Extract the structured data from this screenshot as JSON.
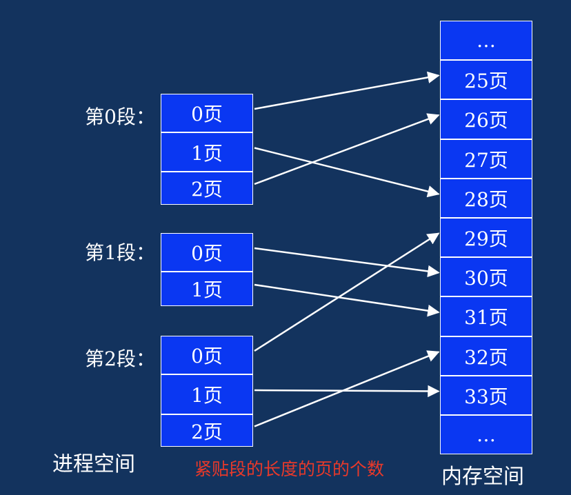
{
  "segments": [
    {
      "label": "第0段：",
      "pages": [
        "0页",
        "1页",
        "2页"
      ]
    },
    {
      "label": "第1段：",
      "pages": [
        "0页",
        "1页"
      ]
    },
    {
      "label": "第2段：",
      "pages": [
        "0页",
        "1页",
        "2页"
      ]
    }
  ],
  "memory": {
    "frames": [
      "…",
      "25页",
      "26页",
      "27页",
      "28页",
      "29页",
      "30页",
      "31页",
      "32页",
      "33页",
      "…"
    ]
  },
  "mappings": [
    {
      "segment": 0,
      "page": 0,
      "frame": "25页"
    },
    {
      "segment": 0,
      "page": 1,
      "frame": "28页"
    },
    {
      "segment": 0,
      "page": 2,
      "frame": "26页"
    },
    {
      "segment": 1,
      "page": 0,
      "frame": "30页"
    },
    {
      "segment": 1,
      "page": 1,
      "frame": "31页"
    },
    {
      "segment": 2,
      "page": 0,
      "frame": "29页"
    },
    {
      "segment": 2,
      "page": 1,
      "frame": "33页"
    },
    {
      "segment": 2,
      "page": 2,
      "frame": "32页"
    }
  ],
  "labels": {
    "process_space": "进程空间",
    "memory_space": "内存空间",
    "note": "紧贴段的长度的页的个数"
  },
  "colors": {
    "background": "#13335e",
    "cell_fill": "#0a37f2",
    "note_text": "#e8392a",
    "arrow": "#ffffff"
  }
}
